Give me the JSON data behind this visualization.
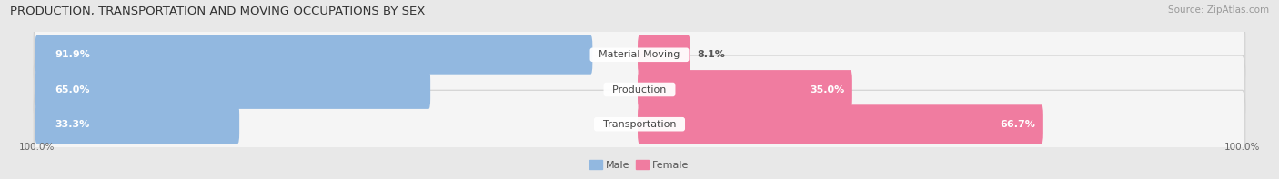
{
  "title": "PRODUCTION, TRANSPORTATION AND MOVING OCCUPATIONS BY SEX",
  "source": "Source: ZipAtlas.com",
  "categories": [
    "Material Moving",
    "Production",
    "Transportation"
  ],
  "male_values": [
    91.9,
    65.0,
    33.3
  ],
  "female_values": [
    8.1,
    35.0,
    66.7
  ],
  "male_color": "#92b8e0",
  "female_color": "#f07ca0",
  "male_label": "Male",
  "female_label": "Female",
  "bg_color": "#e8e8e8",
  "row_bg": "#f5f5f5",
  "row_border": "#d0d0d0",
  "bar_height": 0.52,
  "title_fontsize": 9.5,
  "source_fontsize": 7.5,
  "pct_fontsize": 8.0,
  "cat_fontsize": 8.0,
  "legend_fontsize": 8.0,
  "tick_fontsize": 7.5,
  "left_label": "100.0%",
  "right_label": "100.0%"
}
